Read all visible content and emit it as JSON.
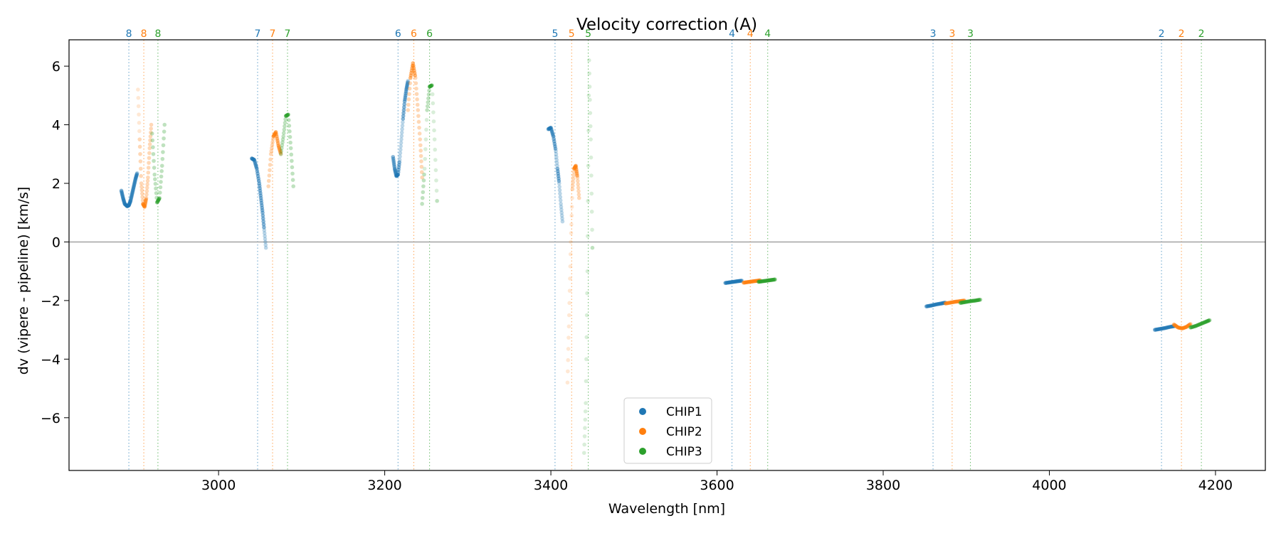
{
  "chart_data": {
    "type": "scatter",
    "title": "Velocity correction (A)",
    "xlabel": "Wavelength [nm]",
    "ylabel": "dv (vipere - pipeline) [km/s]",
    "xlim": [
      2820,
      4260
    ],
    "ylim": [
      -7.8,
      6.9
    ],
    "xticks": [
      3000,
      3200,
      3400,
      3600,
      3800,
      4000,
      4200
    ],
    "xtick_labels": [
      "3000",
      "3200",
      "3400",
      "3600",
      "3800",
      "4000",
      "4200"
    ],
    "yticks": [
      -6,
      -4,
      -2,
      0,
      2,
      4,
      6
    ],
    "ytick_labels": [
      "−6",
      "−4",
      "−2",
      "0",
      "2",
      "4",
      "6"
    ],
    "zero_line": 0,
    "legend_position": "bottom-center",
    "colors": {
      "CHIP1": "#1f77b4",
      "CHIP2": "#ff7f0e",
      "CHIP3": "#2ca02c"
    },
    "order_markers": [
      {
        "chip": "CHIP1",
        "order": "8",
        "x": 2892
      },
      {
        "chip": "CHIP2",
        "order": "8",
        "x": 2910
      },
      {
        "chip": "CHIP3",
        "order": "8",
        "x": 2927
      },
      {
        "chip": "CHIP1",
        "order": "7",
        "x": 3047
      },
      {
        "chip": "CHIP2",
        "order": "7",
        "x": 3065
      },
      {
        "chip": "CHIP3",
        "order": "7",
        "x": 3083
      },
      {
        "chip": "CHIP1",
        "order": "6",
        "x": 3216
      },
      {
        "chip": "CHIP2",
        "order": "6",
        "x": 3235
      },
      {
        "chip": "CHIP3",
        "order": "6",
        "x": 3254
      },
      {
        "chip": "CHIP1",
        "order": "5",
        "x": 3405
      },
      {
        "chip": "CHIP2",
        "order": "5",
        "x": 3425
      },
      {
        "chip": "CHIP3",
        "order": "5",
        "x": 3445
      },
      {
        "chip": "CHIP1",
        "order": "4",
        "x": 3618
      },
      {
        "chip": "CHIP2",
        "order": "4",
        "x": 3640
      },
      {
        "chip": "CHIP3",
        "order": "4",
        "x": 3661
      },
      {
        "chip": "CHIP1",
        "order": "3",
        "x": 3860
      },
      {
        "chip": "CHIP2",
        "order": "3",
        "x": 3883
      },
      {
        "chip": "CHIP3",
        "order": "3",
        "x": 3905
      },
      {
        "chip": "CHIP1",
        "order": "2",
        "x": 4135
      },
      {
        "chip": "CHIP2",
        "order": "2",
        "x": 4159
      },
      {
        "chip": "CHIP3",
        "order": "2",
        "x": 4183
      }
    ],
    "series": [
      {
        "name": "CHIP1",
        "segments": [
          {
            "x": [
              2883,
              2885,
              2887,
              2890,
              2892,
              2894,
              2896,
              2898,
              2900,
              2902
            ],
            "y": [
              1.75,
              1.5,
              1.3,
              1.22,
              1.25,
              1.4,
              1.65,
              1.9,
              2.15,
              2.35
            ]
          },
          {
            "x": [
              3040,
              3043,
              3046,
              3049,
              3051,
              3053,
              3055,
              3057
            ],
            "y": [
              2.85,
              2.8,
              2.5,
              2.0,
              1.5,
              1.0,
              0.4,
              -0.2
            ]
          },
          {
            "x": [
              3210,
              3212,
              3214,
              3216,
              3218,
              3220,
              3222,
              3224,
              3226,
              3228
            ],
            "y": [
              2.9,
              2.5,
              2.25,
              2.3,
              2.8,
              3.5,
              4.2,
              4.8,
              5.2,
              5.5
            ]
          },
          {
            "x": [
              3397,
              3400,
              3403,
              3406,
              3408,
              3410,
              3412,
              3414
            ],
            "y": [
              3.85,
              3.9,
              3.6,
              3.1,
              2.5,
              2.0,
              1.3,
              0.7
            ]
          },
          {
            "x": [
              3610,
              3615,
              3620,
              3625,
              3630
            ],
            "y": [
              -1.4,
              -1.38,
              -1.36,
              -1.34,
              -1.32
            ]
          },
          {
            "x": [
              3852,
              3858,
              3864,
              3870,
              3875
            ],
            "y": [
              -2.2,
              -2.17,
              -2.13,
              -2.1,
              -2.07
            ]
          },
          {
            "x": [
              4127,
              4133,
              4139,
              4145,
              4151
            ],
            "y": [
              -3.0,
              -2.97,
              -2.94,
              -2.9,
              -2.87
            ]
          }
        ]
      },
      {
        "name": "CHIP2",
        "segments": [
          {
            "x": [
              2903,
              2905,
              2907,
              2909,
              2911,
              2913,
              2915,
              2917,
              2919
            ],
            "y": [
              5.2,
              3.5,
              2.0,
              1.3,
              1.2,
              1.5,
              2.2,
              3.2,
              4.0
            ]
          },
          {
            "x": [
              3060,
              3063,
              3066,
              3069,
              3072,
              3075
            ],
            "y": [
              1.9,
              3.0,
              3.6,
              3.75,
              3.3,
              3.0
            ]
          },
          {
            "x": [
              3228,
              3231,
              3234,
              3237,
              3240,
              3243,
              3245
            ],
            "y": [
              4.5,
              5.6,
              6.1,
              5.6,
              4.5,
              3.3,
              2.2
            ]
          },
          {
            "x": [
              3420,
              3422,
              3424,
              3426,
              3428,
              3430,
              3432,
              3434
            ],
            "y": [
              -4.8,
              -2.5,
              0.0,
              1.8,
              2.5,
              2.6,
              2.2,
              1.5
            ]
          },
          {
            "x": [
              3632,
              3637,
              3642,
              3647,
              3652
            ],
            "y": [
              -1.39,
              -1.37,
              -1.35,
              -1.33,
              -1.31
            ]
          },
          {
            "x": [
              3875,
              3881,
              3887,
              3893,
              3898
            ],
            "y": [
              -2.1,
              -2.07,
              -2.04,
              -2.02,
              -2.0
            ]
          },
          {
            "x": [
              4150,
              4155,
              4160,
              4165,
              4170
            ],
            "y": [
              -2.82,
              -2.92,
              -2.95,
              -2.9,
              -2.8
            ]
          }
        ]
      },
      {
        "name": "CHIP3",
        "segments": [
          {
            "x": [
              2920,
              2923,
              2926,
              2929,
              2932,
              2935
            ],
            "y": [
              3.7,
              2.3,
              1.35,
              1.5,
              2.6,
              4.0
            ]
          },
          {
            "x": [
              3075,
              3078,
              3081,
              3084,
              3087,
              3090
            ],
            "y": [
              3.0,
              3.6,
              4.3,
              4.35,
              3.2,
              1.9
            ]
          },
          {
            "x": [
              3245,
              3248,
              3251,
              3254,
              3257,
              3260,
              3263
            ],
            "y": [
              1.3,
              2.5,
              4.5,
              5.3,
              5.35,
              3.5,
              1.4
            ]
          },
          {
            "x": [
              3440,
              3442,
              3444,
              3446,
              3448,
              3450
            ],
            "y": [
              -7.2,
              -5.5,
              -1.0,
              6.2,
              3.5,
              -0.2
            ]
          },
          {
            "x": [
              3650,
              3655,
              3660,
              3665,
              3670
            ],
            "y": [
              -1.36,
              -1.34,
              -1.32,
              -1.3,
              -1.28
            ]
          },
          {
            "x": [
              3893,
              3899,
              3905,
              3911,
              3917
            ],
            "y": [
              -2.08,
              -2.05,
              -2.02,
              -2.0,
              -1.97
            ]
          },
          {
            "x": [
              4170,
              4176,
              4182,
              4188,
              4193
            ],
            "y": [
              -2.92,
              -2.87,
              -2.8,
              -2.73,
              -2.67
            ]
          }
        ]
      }
    ],
    "legend": [
      {
        "label": "CHIP1",
        "color": "#1f77b4"
      },
      {
        "label": "CHIP2",
        "color": "#ff7f0e"
      },
      {
        "label": "CHIP3",
        "color": "#2ca02c"
      }
    ]
  }
}
